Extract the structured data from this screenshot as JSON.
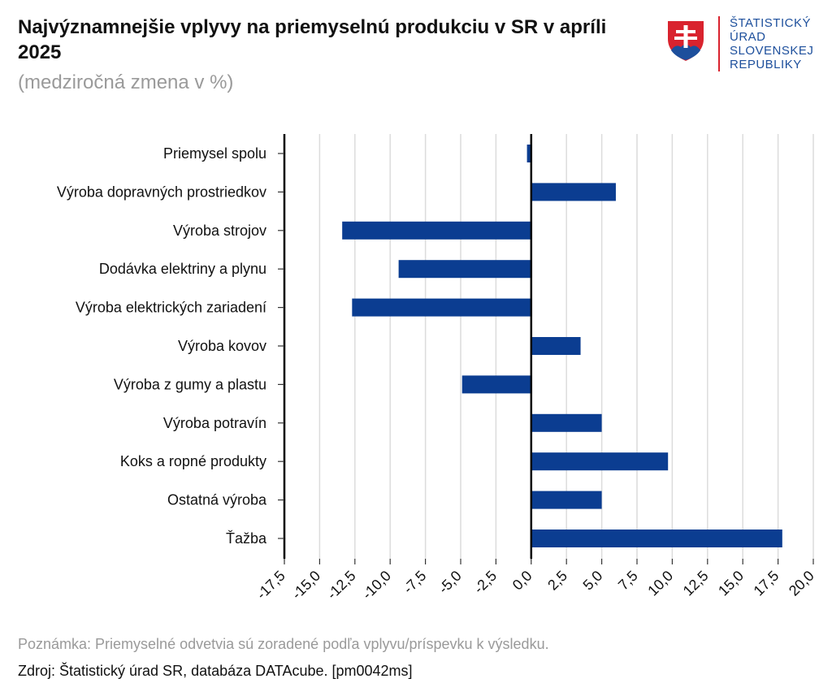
{
  "header": {
    "title": "Najvýznamnejšie vplyvy na priemyselnú produkciu v SR v apríli 2025",
    "subtitle": "(medziročná zmena v %)"
  },
  "logo": {
    "lines": [
      "ŠTATISTICKÝ",
      "ÚRAD",
      "SLOVENSKEJ",
      "REPUBLIKY"
    ],
    "shield_red": "#d9232e",
    "shield_blue": "#1d4f9c"
  },
  "chart_data": {
    "type": "bar",
    "orientation": "horizontal",
    "categories": [
      "Priemysel spolu",
      "Výroba dopravných prostriedkov",
      "Výroba strojov",
      "Dodávka elektriny a plynu",
      "Výroba elektrických zariadení",
      "Výroba kovov",
      "Výroba z gumy a plastu",
      "Výroba potravín",
      "Koks a ropné produkty",
      "Ostatná výroba",
      "Ťažba"
    ],
    "values": [
      -0.3,
      6.0,
      -13.4,
      -9.4,
      -12.7,
      3.5,
      -4.9,
      5.0,
      9.7,
      5.0,
      17.8
    ],
    "xlim": [
      -17.5,
      20.0
    ],
    "ticks": [
      -17.5,
      -15.0,
      -12.5,
      -10.0,
      -7.5,
      -5.0,
      -2.5,
      0.0,
      2.5,
      5.0,
      7.5,
      10.0,
      12.5,
      15.0,
      17.5,
      20.0
    ],
    "tick_labels": [
      "-17,5",
      "-15,0",
      "-12,5",
      "-10,0",
      "-7,5",
      "-5,0",
      "-2,5",
      "0,0",
      "2,5",
      "5,0",
      "7,5",
      "10,0",
      "12,5",
      "15,0",
      "17,5",
      "20,0"
    ],
    "grid": true,
    "bar_color": "#0b3d91",
    "grid_color": "#dcdcdc"
  },
  "footer": {
    "note": "Poznámka: Priemyselné odvetvia sú zoradené podľa vplyvu/príspevku k výsledku.",
    "source": "Zdroj: Štatistický úrad SR, databáza DATAcube. [pm0042ms]"
  }
}
